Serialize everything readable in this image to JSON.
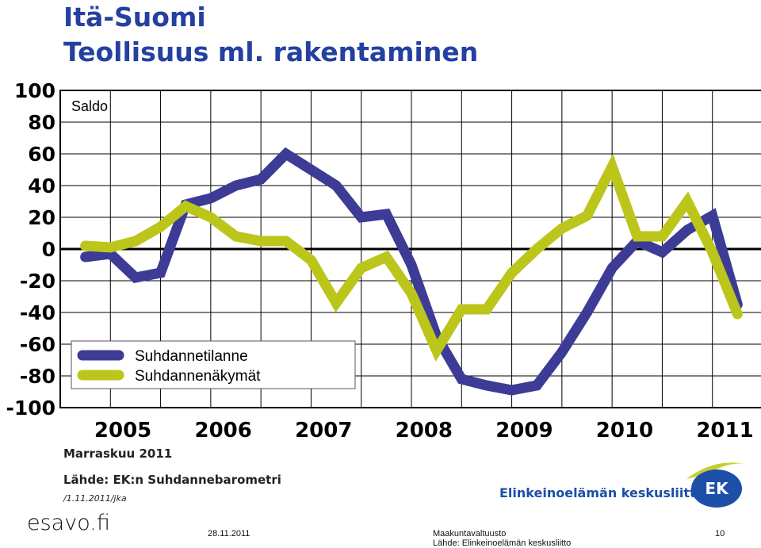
{
  "header": {
    "title": "Itä-Suomi",
    "subtitle": "Teollisuus ml. rakentaminen"
  },
  "chart_data": {
    "type": "line",
    "ylabel_inside": "Saldo",
    "ylim": [
      -100,
      100
    ],
    "yticks": [
      "100",
      "80",
      "60",
      "40",
      "20",
      "0",
      "-20",
      "-40",
      "-60",
      "-80",
      "-100"
    ],
    "year_labels": [
      "2005",
      "2006",
      "2007",
      "2008",
      "2009",
      "2010",
      "2011"
    ],
    "grid": true,
    "legend_position": "bottom-left",
    "x": [
      0,
      1,
      2,
      3,
      4,
      5,
      6,
      7,
      8,
      9,
      10,
      11,
      12,
      13,
      14,
      15,
      16,
      17,
      18,
      19,
      20,
      21,
      22,
      23,
      24,
      25,
      26
    ],
    "series": [
      {
        "name": "Suhdannetilanne",
        "color": "#3c3c96",
        "values": [
          -5,
          -3,
          -18,
          -15,
          28,
          32,
          40,
          44,
          60,
          50,
          40,
          20,
          22,
          -10,
          -55,
          -82,
          -86,
          -89,
          -86,
          -65,
          -40,
          -12,
          5,
          -2,
          12,
          21,
          -35
        ]
      },
      {
        "name": "Suhdannenäkymät",
        "color": "#bcc51a",
        "values": [
          2,
          1,
          5,
          14,
          27,
          20,
          8,
          5,
          5,
          -7,
          -34,
          -12,
          -5,
          -28,
          -64,
          -38,
          -38,
          -15,
          0,
          13,
          21,
          52,
          8,
          8,
          30,
          -2,
          -41
        ]
      }
    ]
  },
  "notes": {
    "period": "Marraskuu 2011",
    "source": "Lähde: EK:n Suhdannebarometri",
    "date_code": "/1.11.2011/jka"
  },
  "logo": {
    "name": "Elinkeinoelämän keskusliitto",
    "mark": "EK"
  },
  "footer": {
    "brand": "esavo.fi",
    "date": "28.11.2011",
    "event": "Maakuntavaltuusto",
    "page": "10",
    "source": "Lähde: Elinkeinoelämän keskusliitto"
  }
}
